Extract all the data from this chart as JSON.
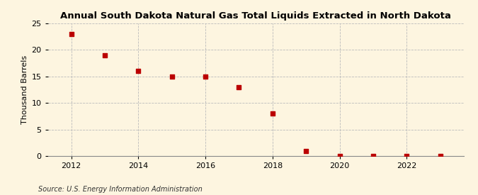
{
  "title": "Annual South Dakota Natural Gas Total Liquids Extracted in North Dakota",
  "ylabel": "Thousand Barrels",
  "source": "Source: U.S. Energy Information Administration",
  "x": [
    2012,
    2013,
    2014,
    2015,
    2016,
    2017,
    2018,
    2019,
    2020,
    2021,
    2022,
    2023
  ],
  "y": [
    23,
    19,
    16,
    15,
    15,
    13,
    8,
    1,
    0,
    0,
    0,
    0
  ],
  "xlim": [
    2011.3,
    2023.7
  ],
  "ylim": [
    0,
    25
  ],
  "yticks": [
    0,
    5,
    10,
    15,
    20,
    25
  ],
  "xticks": [
    2012,
    2014,
    2016,
    2018,
    2020,
    2022
  ],
  "marker_color": "#bb0000",
  "marker": "s",
  "marker_size": 16,
  "bg_color": "#fdf5e0",
  "grid_color": "#bbbbbb",
  "title_fontsize": 9.5,
  "label_fontsize": 8,
  "tick_fontsize": 8,
  "source_fontsize": 7
}
